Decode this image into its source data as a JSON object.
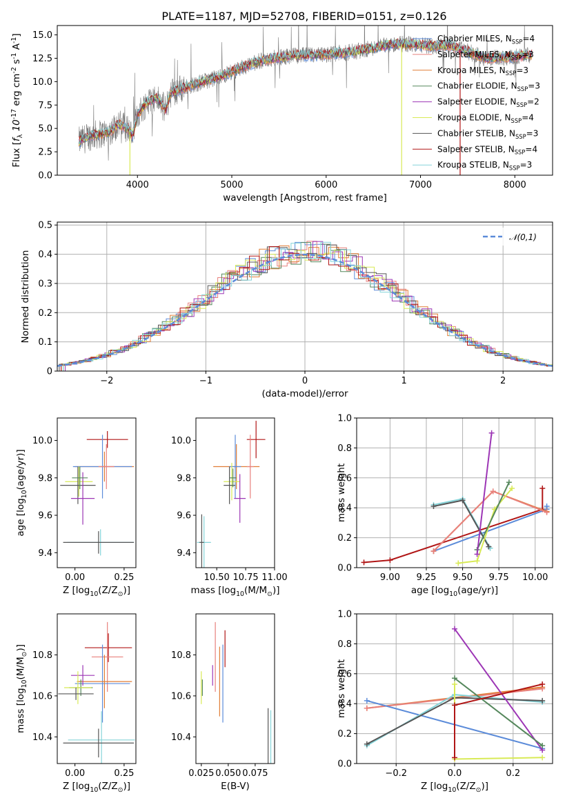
{
  "figure": {
    "title": "PLATE=1187, MJD=52708, FIBERID=0151, z=0.126"
  },
  "colors": {
    "Chabrier MILES": "#5b8bd9",
    "Salpeter MILES": "#e8807c",
    "Kroupa MILES": "#e07d35",
    "Chabrier ELODIE": "#55875c",
    "Salpeter ELODIE": "#9c35b5",
    "Kroupa ELODIE": "#d8ea55",
    "Chabrier STELIB": "#555555",
    "Salpeter STELIB": "#b01515",
    "Kroupa STELIB": "#85d4d9",
    "data": "#777777",
    "grid": "#b0b0b0",
    "gauss": "#5b8bd9"
  },
  "chart_data": [
    {
      "type": "line",
      "id": "spectrum",
      "title": "PLATE=1187, MJD=52708, FIBERID=0151, z=0.126",
      "xlabel": "wavelength [Angstrom, rest frame]",
      "ylabel": "Flux [$f_\\lambda 10^{-17}$ erg cm$^{-2}$ s$^{-1}$ A$^{-1}$]",
      "xlim": [
        3150,
        8400
      ],
      "ylim": [
        0,
        16
      ],
      "xticks": [
        4000,
        5000,
        6000,
        7000,
        8000
      ],
      "yticks": [
        0.0,
        2.5,
        5.0,
        7.5,
        10.0,
        12.5,
        15.0
      ],
      "grid": false,
      "legend_position": "top-right",
      "series": [
        {
          "name": "Chabrier MILES, N$_{SSP}$=4"
        },
        {
          "name": "Salpeter MILES, N$_{SSP}$=3"
        },
        {
          "name": "Kroupa MILES, N$_{SSP}$=3"
        },
        {
          "name": "Chabrier ELODIE, N$_{SSP}$=3"
        },
        {
          "name": "Salpeter ELODIE, N$_{SSP}$=2"
        },
        {
          "name": "Kroupa ELODIE, N$_{SSP}$=4"
        },
        {
          "name": "Chabrier STELIB, N$_{SSP}$=3"
        },
        {
          "name": "Salpeter STELIB, N$_{SSP}$=4"
        },
        {
          "name": "Kroupa STELIB, N$_{SSP}$=3"
        }
      ],
      "continuum": [
        [
          3380,
          3.6
        ],
        [
          3500,
          4.2
        ],
        [
          3700,
          4.6
        ],
        [
          3800,
          5.5
        ],
        [
          3900,
          5.0
        ],
        [
          3950,
          4.2
        ],
        [
          4000,
          6.5
        ],
        [
          4100,
          7.8
        ],
        [
          4200,
          8.3
        ],
        [
          4300,
          7.0
        ],
        [
          4350,
          8.8
        ],
        [
          4500,
          9.4
        ],
        [
          4700,
          10.0
        ],
        [
          4900,
          10.6
        ],
        [
          5100,
          11.5
        ],
        [
          5300,
          12.2
        ],
        [
          5500,
          12.6
        ],
        [
          5700,
          12.8
        ],
        [
          5900,
          12.8
        ],
        [
          6100,
          13.0
        ],
        [
          6300,
          13.2
        ],
        [
          6500,
          13.6
        ],
        [
          6700,
          14.0
        ],
        [
          6900,
          14.0
        ],
        [
          7100,
          13.8
        ],
        [
          7300,
          13.9
        ],
        [
          7500,
          13.2
        ],
        [
          7700,
          12.5
        ],
        [
          7900,
          12.6
        ],
        [
          8100,
          12.8
        ],
        [
          8180,
          12.9
        ]
      ]
    },
    {
      "type": "line",
      "id": "residuals",
      "xlabel": "(data-model)/error",
      "ylabel": "Normed distribution",
      "xlim": [
        -2.5,
        2.5
      ],
      "ylim": [
        0,
        0.51
      ],
      "xticks": [
        -2,
        -1,
        0,
        1,
        2
      ],
      "yticks": [
        0.0,
        0.1,
        0.2,
        0.3,
        0.4,
        0.5
      ],
      "grid": true,
      "legend_position": "top-right",
      "legend": "$\\mathcal{N}(0,1)$"
    },
    {
      "type": "scatter",
      "id": "age_vs_Z",
      "xlabel": "Z [log$_{10}$(Z/Z$_\\odot$)]",
      "ylabel": "age  [log$_{10}$(age/yr)]",
      "xlim": [
        -0.09,
        0.31
      ],
      "ylim": [
        9.32,
        10.12
      ],
      "xticks": [
        0.0,
        0.25
      ],
      "yticks": [
        9.4,
        9.6,
        9.8,
        10.0
      ],
      "grid": false,
      "points": [
        {
          "s": "Salpeter STELIB",
          "x": 0.165,
          "y": 10.005,
          "xe": 0.105,
          "ye": 0.045
        },
        {
          "s": "Kroupa MILES",
          "x": 0.15,
          "y": 9.86,
          "xe": 0.15,
          "ye": 0.08
        },
        {
          "s": "Chabrier MILES",
          "x": 0.14,
          "y": 9.86,
          "xe": 0.15,
          "ye": 0.17
        },
        {
          "s": "Salpeter MILES",
          "x": 0.16,
          "y": 9.86,
          "xe": 0.04,
          "ye": 0.12
        },
        {
          "s": "Kroupa ELODIE",
          "x": 0.02,
          "y": 9.78,
          "xe": 0.07,
          "ye": 0.08
        },
        {
          "s": "Chabrier STELIB",
          "x": 0.015,
          "y": 9.76,
          "xe": 0.09,
          "ye": 0.1
        },
        {
          "s": "Salpeter ELODIE",
          "x": 0.04,
          "y": 9.69,
          "xe": 0.06,
          "ye": 0.14
        },
        {
          "s": "Chabrier ELODIE",
          "x": 0.025,
          "y": 9.8,
          "xe": 0.04,
          "ye": 0.06
        },
        {
          "s": "Kroupa STELIB",
          "x": 0.13,
          "y": 9.455,
          "xe": 0.17,
          "ye": 0.07
        },
        {
          "s": "Chabrier STELIB",
          "x": 0.12,
          "y": 9.455,
          "xe": 0.18,
          "ye": 0.06
        }
      ]
    },
    {
      "type": "scatter",
      "id": "age_vs_mass",
      "xlabel": "mass [log$_{10}$(M/M$_\\odot$)]",
      "ylabel": "",
      "xlim": [
        10.32,
        11.0
      ],
      "ylim": [
        9.32,
        10.12
      ],
      "xticks": [
        10.5,
        10.75,
        11.0
      ],
      "yticks": [
        9.4,
        9.6,
        9.8,
        10.0
      ],
      "grid": false,
      "points": [
        {
          "s": "Salpeter STELIB",
          "x": 10.84,
          "y": 10.005,
          "xe": 0.08,
          "ye": 0.1
        },
        {
          "s": "Kroupa MILES",
          "x": 10.67,
          "y": 9.86,
          "xe": 0.2,
          "ye": 0.12
        },
        {
          "s": "Chabrier MILES",
          "x": 10.66,
          "y": 9.86,
          "xe": 0.05,
          "ye": 0.17
        },
        {
          "s": "Salpeter MILES",
          "x": 10.79,
          "y": 9.86,
          "xe": 0.03,
          "ye": 0.17
        },
        {
          "s": "Kroupa ELODIE",
          "x": 10.63,
          "y": 9.78,
          "xe": 0.07,
          "ye": 0.1
        },
        {
          "s": "Chabrier STELIB",
          "x": 10.61,
          "y": 9.76,
          "xe": 0.05,
          "ye": 0.1
        },
        {
          "s": "Salpeter ELODIE",
          "x": 10.7,
          "y": 9.69,
          "xe": 0.05,
          "ye": 0.13
        },
        {
          "s": "Chabrier ELODIE",
          "x": 10.64,
          "y": 9.8,
          "xe": 0.03,
          "ye": 0.05
        },
        {
          "s": "Kroupa STELIB",
          "x": 10.39,
          "y": 9.455,
          "xe": 0.06,
          "ye": 0.14
        },
        {
          "s": "Chabrier STELIB",
          "x": 10.37,
          "y": 9.455,
          "xe": 0.02,
          "ye": 0.15
        }
      ]
    },
    {
      "type": "line",
      "id": "weight_vs_age",
      "xlabel": "age  [log$_{10}$(age/yr)]",
      "ylabel": "mass weight",
      "xlim": [
        8.77,
        10.12
      ],
      "ylim": [
        0,
        1.0
      ],
      "xticks": [
        9.0,
        9.25,
        9.5,
        9.75,
        10.0
      ],
      "yticks": [
        0.0,
        0.2,
        0.4,
        0.6,
        0.8,
        1.0
      ],
      "grid": true,
      "series": [
        {
          "name": "Salpeter STELIB",
          "x": [
            8.82,
            9.0,
            10.05,
            10.05
          ],
          "y": [
            0.035,
            0.05,
            0.39,
            0.53
          ]
        },
        {
          "name": "Chabrier MILES",
          "x": [
            9.3,
            10.08,
            10.08
          ],
          "y": [
            0.11,
            0.39,
            0.41
          ]
        },
        {
          "name": "Kroupa MILES",
          "x": [
            9.3,
            9.71,
            10.08
          ],
          "y": [
            0.11,
            0.51,
            0.375
          ]
        },
        {
          "name": "Salpeter MILES",
          "x": [
            9.3,
            9.71,
            10.08
          ],
          "y": [
            0.11,
            0.51,
            0.37
          ]
        },
        {
          "name": "Kroupa STELIB",
          "x": [
            9.3,
            9.5,
            9.69
          ],
          "y": [
            0.42,
            0.46,
            0.13
          ]
        },
        {
          "name": "Chabrier STELIB",
          "x": [
            9.3,
            9.5,
            9.68
          ],
          "y": [
            0.41,
            0.45,
            0.14
          ]
        },
        {
          "name": "Kroupa ELODIE",
          "x": [
            9.47,
            9.6,
            9.72,
            9.84
          ],
          "y": [
            0.03,
            0.045,
            0.39,
            0.53
          ]
        },
        {
          "name": "Chabrier ELODIE",
          "x": [
            9.6,
            9.82
          ],
          "y": [
            0.12,
            0.57
          ]
        },
        {
          "name": "Salpeter ELODIE",
          "x": [
            9.6,
            9.7
          ],
          "y": [
            0.09,
            0.9
          ]
        }
      ]
    },
    {
      "type": "scatter",
      "id": "mass_vs_Z",
      "xlabel": "Z [log$_{10}$(Z/Z$_\\odot$)]",
      "ylabel": "mass [log$_{10}$(M/M$_\\odot$)]",
      "xlim": [
        -0.09,
        0.31
      ],
      "ylim": [
        10.27,
        11.0
      ],
      "xticks": [
        0.0,
        0.25
      ],
      "yticks": [
        10.4,
        10.6,
        10.8
      ],
      "grid": false,
      "points": [
        {
          "s": "Salpeter STELIB",
          "x": 0.17,
          "y": 10.835,
          "xe": 0.12,
          "ye": 0.07
        },
        {
          "s": "Salpeter MILES",
          "x": 0.165,
          "y": 10.79,
          "xe": 0.08,
          "ye": 0.17
        },
        {
          "s": "Chabrier MILES",
          "x": 0.14,
          "y": 10.66,
          "xe": 0.14,
          "ye": 0.19
        },
        {
          "s": "Kroupa MILES",
          "x": 0.15,
          "y": 10.67,
          "xe": 0.14,
          "ye": 0.13
        },
        {
          "s": "Salpeter ELODIE",
          "x": 0.04,
          "y": 10.7,
          "xe": 0.06,
          "ye": 0.05
        },
        {
          "s": "Chabrier ELODIE",
          "x": 0.03,
          "y": 10.64,
          "xe": 0.06,
          "ye": 0.04
        },
        {
          "s": "Kroupa ELODIE",
          "x": 0.015,
          "y": 10.64,
          "xe": 0.07,
          "ye": 0.08
        },
        {
          "s": "Chabrier STELIB",
          "x": 0.005,
          "y": 10.61,
          "xe": 0.09,
          "ye": 0.03
        },
        {
          "s": "Kroupa STELIB",
          "x": 0.135,
          "y": 10.385,
          "xe": 0.17,
          "ye": 0.14
        },
        {
          "s": "Chabrier STELIB",
          "x": 0.12,
          "y": 10.37,
          "xe": 0.18,
          "ye": 0.07
        }
      ]
    },
    {
      "type": "scatter",
      "id": "mass_vs_ebv",
      "xlabel": "E(B-V)",
      "ylabel": "",
      "xlim": [
        0.02,
        0.093
      ],
      "ylim": [
        10.27,
        11.0
      ],
      "xticks": [
        0.025,
        0.05,
        0.075
      ],
      "yticks": [
        10.4,
        10.6,
        10.8
      ],
      "grid": false,
      "points": [
        {
          "s": "Salpeter STELIB",
          "x": 0.047,
          "y": 10.83,
          "xe": 0,
          "ye": 0.09
        },
        {
          "s": "Salpeter MILES",
          "x": 0.038,
          "y": 10.79,
          "xe": 0,
          "ye": 0.17
        },
        {
          "s": "Chabrier MILES",
          "x": 0.045,
          "y": 10.66,
          "xe": 0,
          "ye": 0.19
        },
        {
          "s": "Kroupa MILES",
          "x": 0.042,
          "y": 10.67,
          "xe": 0,
          "ye": 0.17
        },
        {
          "s": "Salpeter ELODIE",
          "x": 0.0355,
          "y": 10.7,
          "xe": 0,
          "ye": 0.05
        },
        {
          "s": "Chabrier ELODIE",
          "x": 0.026,
          "y": 10.64,
          "xe": 0,
          "ye": 0.04
        },
        {
          "s": "Kroupa ELODIE",
          "x": 0.025,
          "y": 10.64,
          "xe": 0,
          "ye": 0.08
        },
        {
          "s": "Chabrier STELIB",
          "x": 0.087,
          "y": 10.4,
          "xe": 0,
          "ye": 0.14
        },
        {
          "s": "Kroupa STELIB",
          "x": 0.0895,
          "y": 10.39,
          "xe": 0,
          "ye": 0.14
        }
      ]
    },
    {
      "type": "line",
      "id": "weight_vs_Z",
      "xlabel": "Z [log$_{10}$(Z/Z$_\\odot$)]",
      "ylabel": "mass weight",
      "xlim": [
        -0.335,
        0.335
      ],
      "ylim": [
        0,
        1.0
      ],
      "xticks": [
        -0.2,
        0.0,
        0.2
      ],
      "yticks": [
        0.0,
        0.2,
        0.4,
        0.6,
        0.8,
        1.0
      ],
      "grid": true,
      "series": [
        {
          "name": "Kroupa MILES",
          "x": [
            -0.3,
            0.3
          ],
          "y": [
            0.37,
            0.51
          ]
        },
        {
          "name": "Salpeter MILES",
          "x": [
            -0.3,
            0.3
          ],
          "y": [
            0.37,
            0.5
          ]
        },
        {
          "name": "Chabrier MILES",
          "x": [
            -0.3,
            0.3
          ],
          "y": [
            0.42,
            0.1
          ]
        },
        {
          "name": "Kroupa STELIB",
          "x": [
            -0.3,
            0.0,
            0.3
          ],
          "y": [
            0.12,
            0.46,
            0.41
          ]
        },
        {
          "name": "Chabrier STELIB",
          "x": [
            -0.3,
            0.0,
            0.3
          ],
          "y": [
            0.13,
            0.44,
            0.42
          ]
        },
        {
          "name": "Salpeter ELODIE",
          "x": [
            0.0,
            0.3
          ],
          "y": [
            0.9,
            0.09
          ]
        },
        {
          "name": "Chabrier ELODIE",
          "x": [
            0.0,
            0.3
          ],
          "y": [
            0.57,
            0.12
          ]
        },
        {
          "name": "Kroupa ELODIE",
          "x": [
            0.0,
            0.0,
            0.3
          ],
          "y": [
            0.53,
            0.03,
            0.04
          ]
        },
        {
          "name": "Salpeter STELIB",
          "x": [
            0.0,
            0.0,
            0.3
          ],
          "y": [
            0.04,
            0.39,
            0.53
          ]
        }
      ]
    }
  ]
}
